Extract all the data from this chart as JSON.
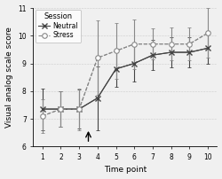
{
  "x": [
    1,
    2,
    3,
    4,
    5,
    6,
    7,
    8,
    9,
    10
  ],
  "neutral_y": [
    7.35,
    7.35,
    7.35,
    7.75,
    8.8,
    9.0,
    9.3,
    9.4,
    9.4,
    9.55
  ],
  "neutral_yerr": [
    0.75,
    0.65,
    0.7,
    1.15,
    0.65,
    0.65,
    0.55,
    0.55,
    0.55,
    0.55
  ],
  "stress_y": [
    7.1,
    7.35,
    7.35,
    9.2,
    9.45,
    9.7,
    9.7,
    9.7,
    9.7,
    10.1
  ],
  "stress_yerr": [
    0.6,
    0.65,
    0.75,
    1.35,
    1.0,
    0.9,
    0.55,
    0.6,
    0.6,
    0.9
  ],
  "ylim": [
    6,
    11
  ],
  "yticks": [
    6,
    7,
    8,
    9,
    10,
    11
  ],
  "xlabel": "Time point",
  "ylabel": "Visual analog scale score",
  "legend_title": "Session",
  "legend_labels": [
    "Neutral",
    "Stress"
  ],
  "neutral_color": "#444444",
  "stress_color": "#888888",
  "bg_color": "#f0f0f0",
  "label_fontsize": 6.5,
  "tick_fontsize": 5.5,
  "legend_fontsize": 5.5
}
